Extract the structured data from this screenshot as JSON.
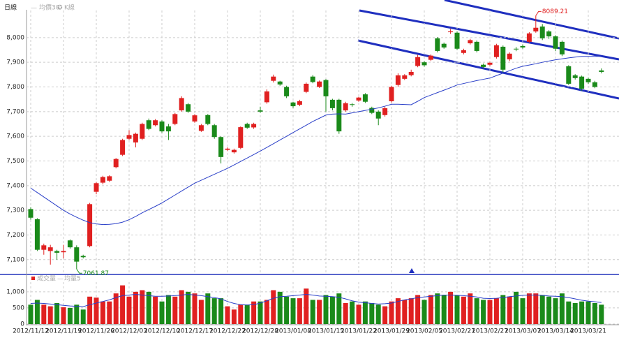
{
  "chart_data": [
    {
      "type": "candlestick",
      "title": "日線",
      "candle_label": "K線",
      "up_color": "#e02020",
      "down_color": "#1a8a1a",
      "open": [
        7305,
        7264,
        7140,
        7135,
        7135,
        7130,
        7178,
        7150,
        7115,
        7155,
        7375,
        7412,
        7420,
        7475,
        7525,
        7590,
        7575,
        7590,
        7665,
        7645,
        7660,
        7640,
        7650,
        7705,
        7730,
        7660,
        7622,
        7686,
        7645,
        7597,
        7545,
        7535,
        7553,
        7650,
        7636,
        7705,
        7738,
        7825,
        7822,
        7800,
        7737,
        7728,
        7780,
        7842,
        7800,
        7828,
        7748,
        7748,
        7705,
        7730,
        7745,
        7770,
        7715,
        7700,
        7686,
        7742,
        7808,
        7833,
        7848,
        7885,
        7900,
        7910,
        7997,
        7975,
        8022,
        8020,
        7938,
        7977,
        7983,
        7890,
        7890,
        7921,
        7963,
        7912,
        7955,
        7966,
        7983,
        8025,
        8045,
        8025,
        8005,
        7983,
        7884,
        7847,
        7842,
        7833,
        7819,
        7867
      ],
      "high": [
        7312,
        7268,
        7165,
        7160,
        7140,
        7160,
        7182,
        7158,
        7120,
        7330,
        7415,
        7440,
        7442,
        7512,
        7590,
        7625,
        7615,
        7655,
        7672,
        7670,
        7665,
        7650,
        7695,
        7762,
        7735,
        7690,
        7650,
        7690,
        7650,
        7600,
        7555,
        7550,
        7640,
        7655,
        7655,
        7720,
        7790,
        7850,
        7825,
        7805,
        7740,
        7748,
        7818,
        7848,
        7826,
        7832,
        7752,
        7752,
        7740,
        7735,
        7760,
        7775,
        7720,
        7705,
        7720,
        7805,
        7855,
        7852,
        7870,
        7930,
        7905,
        7932,
        8002,
        7980,
        8035,
        8025,
        7955,
        7995,
        7988,
        7895,
        7902,
        7975,
        7968,
        7940,
        7962,
        7972,
        8022,
        8089.21,
        8055,
        8030,
        8010,
        7988,
        7888,
        7852,
        7846,
        7838,
        7825,
        7875
      ],
      "low": [
        7262,
        7135,
        7120,
        7080,
        7100,
        7105,
        7145,
        7061.87,
        7105,
        7150,
        7365,
        7405,
        7415,
        7470,
        7520,
        7585,
        7555,
        7585,
        7625,
        7640,
        7615,
        7585,
        7645,
        7700,
        7695,
        7655,
        7618,
        7645,
        7590,
        7490,
        7540,
        7530,
        7548,
        7630,
        7630,
        7695,
        7732,
        7818,
        7805,
        7755,
        7715,
        7722,
        7775,
        7815,
        7796,
        7700,
        7705,
        7610,
        7700,
        7720,
        7740,
        7735,
        7690,
        7645,
        7680,
        7737,
        7800,
        7828,
        7843,
        7880,
        7882,
        7905,
        7940,
        7955,
        8015,
        7950,
        7932,
        7972,
        7940,
        7875,
        7885,
        7915,
        7860,
        7905,
        7945,
        7955,
        7978,
        8020,
        7990,
        7995,
        7945,
        7925,
        7808,
        7830,
        7785,
        7812,
        7795,
        7855
      ],
      "close": [
        7270,
        7140,
        7158,
        7150,
        7128,
        7135,
        7150,
        7092,
        7110,
        7325,
        7410,
        7435,
        7438,
        7508,
        7585,
        7605,
        7610,
        7650,
        7630,
        7665,
        7620,
        7620,
        7690,
        7755,
        7700,
        7685,
        7645,
        7650,
        7597,
        7516,
        7550,
        7545,
        7637,
        7635,
        7650,
        7700,
        7782,
        7842,
        7810,
        7762,
        7722,
        7742,
        7813,
        7820,
        7822,
        7762,
        7714,
        7620,
        7734,
        7728,
        7757,
        7740,
        7695,
        7672,
        7714,
        7800,
        7847,
        7847,
        7861,
        7921,
        7888,
        7927,
        7946,
        7960,
        8025,
        7955,
        7949,
        7990,
        7946,
        7881,
        7898,
        7969,
        7870,
        7935,
        7952,
        7960,
        8017,
        8040,
        7997,
        8005,
        7955,
        7932,
        7813,
        7836,
        7793,
        7819,
        7800,
        7861
      ],
      "series": [
        {
          "name": "均價30",
          "color": "#2a3fc8",
          "values": [
            7390,
            7372,
            7354,
            7336,
            7318,
            7300,
            7285,
            7272,
            7260,
            7250,
            7245,
            7242,
            7243,
            7246,
            7252,
            7262,
            7275,
            7290,
            7303,
            7316,
            7330,
            7346,
            7362,
            7378,
            7394,
            7410,
            7422,
            7434,
            7446,
            7458,
            7470,
            7484,
            7498,
            7512,
            7526,
            7540,
            7555,
            7570,
            7585,
            7600,
            7615,
            7630,
            7645,
            7660,
            7673,
            7686,
            7690,
            7691,
            7690,
            7695,
            7700,
            7705,
            7710,
            7715,
            7722,
            7730,
            7730,
            7729,
            7728,
            7742,
            7757,
            7767,
            7777,
            7787,
            7797,
            7808,
            7814,
            7820,
            7826,
            7831,
            7836,
            7846,
            7856,
            7866,
            7876,
            7884,
            7889,
            7894,
            7900,
            7905,
            7910,
            7914,
            7918,
            7921,
            7924,
            7924,
            7924,
            7924
          ]
        }
      ],
      "high_label": {
        "index": 77,
        "label": "8089.21"
      },
      "low_label": {
        "index": 7,
        "label": "7061.87"
      },
      "ylim": [
        7040,
        8110
      ],
      "yticks": [
        {
          "value": 7100,
          "label": "7,100"
        },
        {
          "value": 7200,
          "label": "7,200"
        },
        {
          "value": 7300,
          "label": "7,300"
        },
        {
          "value": 7400,
          "label": "7,400"
        },
        {
          "value": 7500,
          "label": "7,500"
        },
        {
          "value": 7600,
          "label": "7,600"
        },
        {
          "value": 7700,
          "label": "7,700"
        },
        {
          "value": 7800,
          "label": "7,800"
        },
        {
          "value": 7900,
          "label": "7,900"
        },
        {
          "value": 8000,
          "label": "8,000"
        }
      ],
      "grid": true
    },
    {
      "type": "bar",
      "categories": [
        "2012/11/12",
        null,
        null,
        null,
        null,
        "2012/11/19",
        null,
        null,
        null,
        null,
        "2012/11/26",
        null,
        null,
        null,
        null,
        "2012/12/03",
        null,
        null,
        null,
        null,
        "2012/12/10",
        null,
        null,
        null,
        null,
        "2012/12/17",
        null,
        null,
        null,
        null,
        "2012/12/22",
        null,
        null,
        null,
        null,
        "2012/12/28",
        null,
        null,
        null,
        null,
        "2013/01/08",
        null,
        null,
        null,
        null,
        "2013/01/15",
        null,
        null,
        null,
        null,
        "2013/01/22",
        null,
        null,
        null,
        null,
        "2013/01/29",
        null,
        null,
        null,
        null,
        "2013/02/05",
        null,
        null,
        null,
        null,
        "2013/02/21",
        null,
        null,
        null,
        null,
        "2013/02/27",
        null,
        null,
        null,
        null,
        "2013/03/07",
        null,
        null,
        null,
        null,
        "2013/03/14",
        null,
        null,
        null,
        null,
        "2013/03/21",
        null,
        null
      ],
      "series": [
        {
          "name": "成交量",
          "color": "#e02020",
          "values": [
            600,
            750,
            600,
            550,
            650,
            520,
            500,
            600,
            450,
            850,
            820,
            700,
            700,
            950,
            1200,
            850,
            1000,
            1050,
            1000,
            850,
            700,
            900,
            850,
            1050,
            1000,
            950,
            750,
            950,
            800,
            800,
            550,
            450,
            600,
            600,
            700,
            700,
            750,
            1050,
            1000,
            850,
            800,
            800,
            1100,
            750,
            750,
            900,
            850,
            950,
            650,
            700,
            600,
            700,
            650,
            600,
            550,
            700,
            800,
            750,
            800,
            900,
            750,
            900,
            950,
            900,
            1000,
            900,
            850,
            950,
            800,
            750,
            750,
            800,
            900,
            850,
            1000,
            800,
            950,
            950,
            900,
            850,
            800,
            950,
            700,
            650,
            700,
            700,
            650,
            600
          ]
        },
        {
          "name": "均量5",
          "color": "#2a3fc8",
          "values": [
            640,
            650,
            640,
            620,
            600,
            580,
            560,
            550,
            540,
            600,
            650,
            700,
            750,
            820,
            880,
            900,
            920,
            900,
            880,
            860,
            860,
            870,
            880,
            900,
            920,
            900,
            880,
            850,
            820,
            780,
            700,
            640,
            600,
            590,
            600,
            650,
            720,
            800,
            850,
            860,
            880,
            900,
            920,
            900,
            870,
            860,
            850,
            830,
            780,
            720,
            680,
            660,
            640,
            620,
            630,
            650,
            700,
            750,
            780,
            820,
            840,
            860,
            880,
            900,
            900,
            890,
            880,
            860,
            840,
            800,
            790,
            800,
            820,
            850,
            870,
            890,
            900,
            900,
            890,
            870,
            860,
            850,
            820,
            780,
            740,
            710,
            690,
            670
          ]
        }
      ],
      "ylim": [
        0,
        1300
      ],
      "yticks": [
        0,
        500,
        {
          "value": 1000,
          "label": "1,000"
        }
      ],
      "grid": true
    }
  ]
}
